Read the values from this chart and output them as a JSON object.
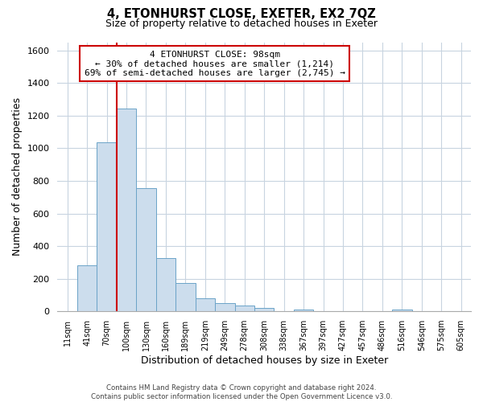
{
  "title": "4, ETONHURST CLOSE, EXETER, EX2 7QZ",
  "subtitle": "Size of property relative to detached houses in Exeter",
  "xlabel": "Distribution of detached houses by size in Exeter",
  "ylabel": "Number of detached properties",
  "bar_labels": [
    "11sqm",
    "41sqm",
    "70sqm",
    "100sqm",
    "130sqm",
    "160sqm",
    "189sqm",
    "219sqm",
    "249sqm",
    "278sqm",
    "308sqm",
    "338sqm",
    "367sqm",
    "397sqm",
    "427sqm",
    "457sqm",
    "486sqm",
    "516sqm",
    "546sqm",
    "575sqm",
    "605sqm"
  ],
  "bar_values": [
    0,
    280,
    1035,
    1245,
    755,
    325,
    175,
    80,
    50,
    38,
    20,
    0,
    10,
    0,
    0,
    0,
    0,
    10,
    0,
    0,
    0
  ],
  "bar_color": "#ccdded",
  "bar_edge_color": "#6ba3c8",
  "vline_x": 2.5,
  "vline_color": "#cc0000",
  "ylim": [
    0,
    1650
  ],
  "yticks": [
    0,
    200,
    400,
    600,
    800,
    1000,
    1200,
    1400,
    1600
  ],
  "annotation_title": "4 ETONHURST CLOSE: 98sqm",
  "annotation_line1": "← 30% of detached houses are smaller (1,214)",
  "annotation_line2": "69% of semi-detached houses are larger (2,745) →",
  "footer_line1": "Contains HM Land Registry data © Crown copyright and database right 2024.",
  "footer_line2": "Contains public sector information licensed under the Open Government Licence v3.0.",
  "background_color": "#ffffff",
  "grid_color": "#c8d4e0"
}
